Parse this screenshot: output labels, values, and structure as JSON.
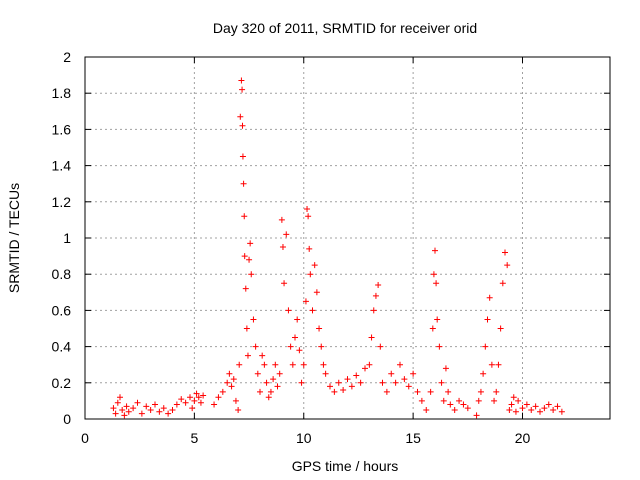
{
  "chart_data": {
    "type": "scatter",
    "title": "Day 320 of 2011, SRMTID for receiver orid",
    "xlabel": "GPS time / hours",
    "ylabel": "SRMTID / TECUs",
    "xlim": [
      0,
      24
    ],
    "ylim": [
      0,
      2
    ],
    "xticks": [
      0,
      5,
      10,
      15,
      20
    ],
    "yticks": [
      0,
      0.2,
      0.4,
      0.6,
      0.8,
      1,
      1.2,
      1.4,
      1.6,
      1.8,
      2
    ],
    "grid": true,
    "marker": "+",
    "color": "#ff0000",
    "series": [
      {
        "name": "SRMTID",
        "points": [
          [
            1.3,
            0.06
          ],
          [
            1.4,
            0.03
          ],
          [
            1.5,
            0.09
          ],
          [
            1.6,
            0.12
          ],
          [
            1.7,
            0.05
          ],
          [
            1.8,
            0.02
          ],
          [
            1.9,
            0.07
          ],
          [
            2.0,
            0.04
          ],
          [
            2.2,
            0.06
          ],
          [
            2.4,
            0.09
          ],
          [
            2.6,
            0.03
          ],
          [
            2.8,
            0.07
          ],
          [
            3.0,
            0.05
          ],
          [
            3.2,
            0.08
          ],
          [
            3.4,
            0.04
          ],
          [
            3.6,
            0.06
          ],
          [
            3.8,
            0.03
          ],
          [
            4.0,
            0.05
          ],
          [
            4.2,
            0.08
          ],
          [
            4.4,
            0.11
          ],
          [
            4.6,
            0.09
          ],
          [
            4.8,
            0.12
          ],
          [
            4.9,
            0.06
          ],
          [
            5.0,
            0.1
          ],
          [
            5.1,
            0.14
          ],
          [
            5.2,
            0.12
          ],
          [
            5.3,
            0.09
          ],
          [
            5.4,
            0.13
          ],
          [
            5.9,
            0.08
          ],
          [
            6.1,
            0.12
          ],
          [
            6.3,
            0.15
          ],
          [
            6.5,
            0.2
          ],
          [
            6.6,
            0.25
          ],
          [
            6.7,
            0.18
          ],
          [
            6.8,
            0.22
          ],
          [
            6.9,
            0.1
          ],
          [
            7.0,
            0.05
          ],
          [
            7.05,
            0.3
          ],
          [
            7.1,
            1.67
          ],
          [
            7.15,
            1.87
          ],
          [
            7.18,
            1.82
          ],
          [
            7.2,
            1.62
          ],
          [
            7.22,
            1.45
          ],
          [
            7.25,
            1.3
          ],
          [
            7.28,
            1.12
          ],
          [
            7.3,
            0.9
          ],
          [
            7.35,
            0.72
          ],
          [
            7.4,
            0.5
          ],
          [
            7.45,
            0.35
          ],
          [
            7.5,
            0.88
          ],
          [
            7.55,
            0.97
          ],
          [
            7.6,
            0.8
          ],
          [
            7.7,
            0.55
          ],
          [
            7.8,
            0.4
          ],
          [
            7.9,
            0.25
          ],
          [
            8.0,
            0.15
          ],
          [
            8.1,
            0.35
          ],
          [
            8.2,
            0.3
          ],
          [
            8.3,
            0.2
          ],
          [
            8.4,
            0.12
          ],
          [
            8.5,
            0.15
          ],
          [
            8.6,
            0.22
          ],
          [
            8.7,
            0.3
          ],
          [
            8.8,
            0.18
          ],
          [
            8.9,
            0.25
          ],
          [
            9.0,
            1.1
          ],
          [
            9.05,
            0.95
          ],
          [
            9.1,
            0.75
          ],
          [
            9.2,
            1.02
          ],
          [
            9.3,
            0.6
          ],
          [
            9.4,
            0.4
          ],
          [
            9.5,
            0.3
          ],
          [
            9.6,
            0.45
          ],
          [
            9.7,
            0.55
          ],
          [
            9.8,
            0.38
          ],
          [
            9.9,
            0.2
          ],
          [
            10.0,
            0.3
          ],
          [
            10.1,
            0.65
          ],
          [
            10.15,
            1.16
          ],
          [
            10.2,
            1.12
          ],
          [
            10.25,
            0.94
          ],
          [
            10.3,
            0.8
          ],
          [
            10.4,
            0.6
          ],
          [
            10.5,
            0.85
          ],
          [
            10.6,
            0.7
          ],
          [
            10.7,
            0.5
          ],
          [
            10.8,
            0.4
          ],
          [
            10.9,
            0.3
          ],
          [
            11.0,
            0.25
          ],
          [
            11.2,
            0.18
          ],
          [
            11.4,
            0.15
          ],
          [
            11.6,
            0.2
          ],
          [
            11.8,
            0.16
          ],
          [
            12.0,
            0.22
          ],
          [
            12.2,
            0.18
          ],
          [
            12.4,
            0.24
          ],
          [
            12.6,
            0.2
          ],
          [
            12.8,
            0.28
          ],
          [
            13.0,
            0.3
          ],
          [
            13.1,
            0.45
          ],
          [
            13.2,
            0.6
          ],
          [
            13.3,
            0.68
          ],
          [
            13.4,
            0.74
          ],
          [
            13.5,
            0.4
          ],
          [
            13.6,
            0.2
          ],
          [
            13.8,
            0.15
          ],
          [
            14.0,
            0.25
          ],
          [
            14.2,
            0.2
          ],
          [
            14.4,
            0.3
          ],
          [
            14.6,
            0.22
          ],
          [
            14.8,
            0.18
          ],
          [
            15.0,
            0.25
          ],
          [
            15.2,
            0.15
          ],
          [
            15.4,
            0.1
          ],
          [
            15.6,
            0.05
          ],
          [
            15.8,
            0.15
          ],
          [
            15.9,
            0.5
          ],
          [
            15.95,
            0.8
          ],
          [
            16.0,
            0.93
          ],
          [
            16.05,
            0.75
          ],
          [
            16.1,
            0.55
          ],
          [
            16.2,
            0.4
          ],
          [
            16.3,
            0.2
          ],
          [
            16.4,
            0.1
          ],
          [
            16.5,
            0.28
          ],
          [
            16.6,
            0.15
          ],
          [
            16.7,
            0.08
          ],
          [
            16.9,
            0.05
          ],
          [
            17.1,
            0.1
          ],
          [
            17.3,
            0.08
          ],
          [
            17.5,
            0.06
          ],
          [
            17.9,
            0.02
          ],
          [
            18.0,
            0.1
          ],
          [
            18.1,
            0.15
          ],
          [
            18.2,
            0.25
          ],
          [
            18.3,
            0.4
          ],
          [
            18.4,
            0.55
          ],
          [
            18.5,
            0.67
          ],
          [
            18.6,
            0.3
          ],
          [
            18.7,
            0.1
          ],
          [
            18.8,
            0.15
          ],
          [
            18.9,
            0.3
          ],
          [
            19.0,
            0.5
          ],
          [
            19.1,
            0.75
          ],
          [
            19.2,
            0.92
          ],
          [
            19.3,
            0.85
          ],
          [
            19.4,
            0.05
          ],
          [
            19.5,
            0.08
          ],
          [
            19.6,
            0.12
          ],
          [
            19.7,
            0.04
          ],
          [
            19.8,
            0.1
          ],
          [
            20.0,
            0.06
          ],
          [
            20.2,
            0.08
          ],
          [
            20.4,
            0.05
          ],
          [
            20.6,
            0.07
          ],
          [
            20.8,
            0.04
          ],
          [
            21.0,
            0.06
          ],
          [
            21.2,
            0.08
          ],
          [
            21.4,
            0.05
          ],
          [
            21.6,
            0.07
          ],
          [
            21.8,
            0.04
          ]
        ]
      }
    ]
  }
}
